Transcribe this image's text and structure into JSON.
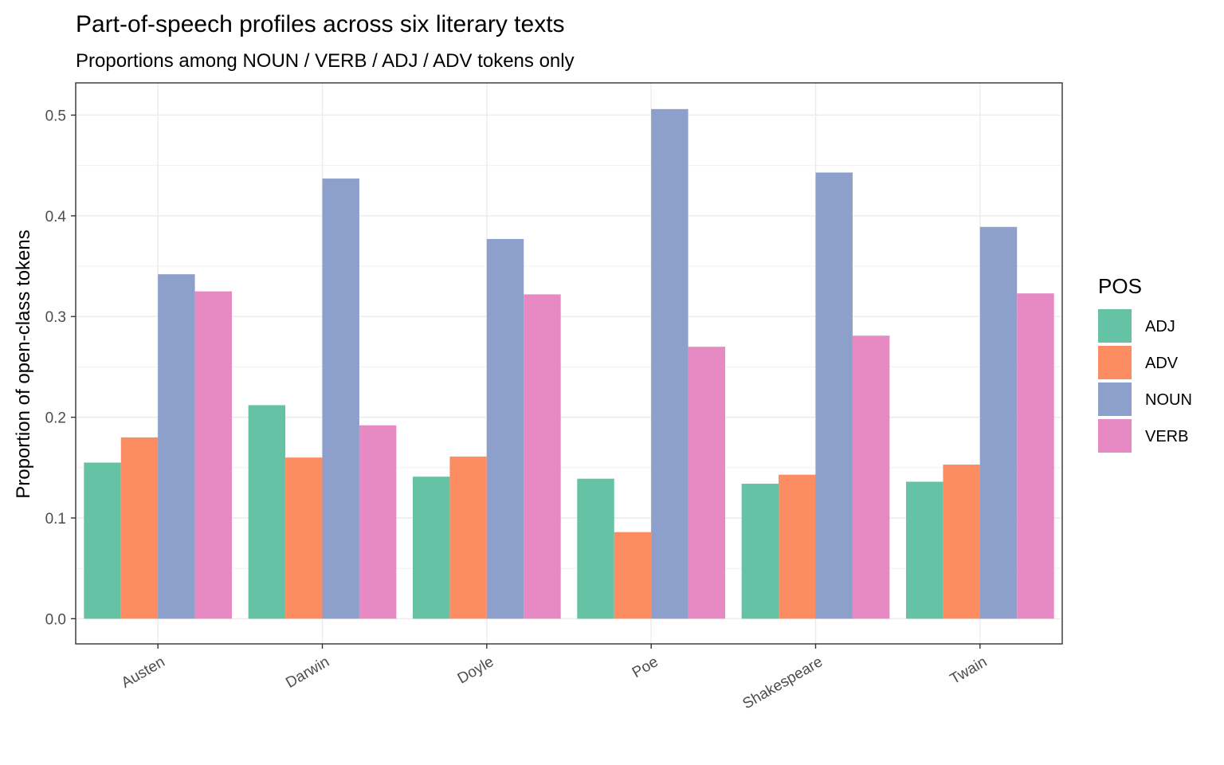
{
  "chart_data": {
    "type": "bar",
    "title": "Part-of-speech profiles across six literary texts",
    "subtitle": "Proportions among NOUN / VERB / ADJ / ADV tokens only",
    "xlabel": "",
    "ylabel": "Proportion of open-class tokens",
    "ylim": [
      -0.025,
      0.532
    ],
    "yticks": [
      0.0,
      0.1,
      0.2,
      0.3,
      0.4,
      0.5
    ],
    "ytick_labels": [
      "0.0",
      "0.1",
      "0.2",
      "0.3",
      "0.4",
      "0.5"
    ],
    "grid": true,
    "categories": [
      "Austen",
      "Darwin",
      "Doyle",
      "Poe",
      "Shakespeare",
      "Twain"
    ],
    "legend": {
      "title": "POS",
      "position": "right"
    },
    "series": [
      {
        "name": "ADJ",
        "color": "#66c2a5",
        "values": [
          0.155,
          0.212,
          0.141,
          0.139,
          0.134,
          0.136
        ]
      },
      {
        "name": "ADV",
        "color": "#fc8d62",
        "values": [
          0.18,
          0.16,
          0.161,
          0.086,
          0.143,
          0.153
        ]
      },
      {
        "name": "NOUN",
        "color": "#8da0cb",
        "values": [
          0.342,
          0.437,
          0.377,
          0.506,
          0.443,
          0.389
        ]
      },
      {
        "name": "VERB",
        "color": "#e78ac3",
        "values": [
          0.325,
          0.192,
          0.322,
          0.27,
          0.281,
          0.323
        ]
      }
    ]
  }
}
